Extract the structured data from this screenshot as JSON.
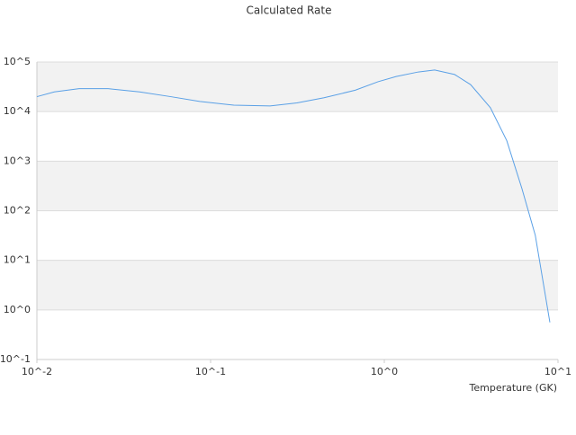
{
  "chart_data": {
    "type": "line",
    "title": "Calculated Rate",
    "x_label": "Temperature (GK)",
    "x_log": true,
    "y_log": true,
    "grid": true,
    "xlim": [
      0.01,
      10
    ],
    "xticks": [
      {
        "value": 0.01,
        "label": "10^-2"
      },
      {
        "value": 0.1,
        "label": "10^-1"
      },
      {
        "value": 1,
        "label": "10^0"
      },
      {
        "value": 10,
        "label": "10^1"
      }
    ],
    "ylim": [
      0.1,
      100000
    ],
    "yticks": [
      {
        "value": 0.1,
        "label": "10^-1"
      },
      {
        "value": 1,
        "label": "10^0"
      },
      {
        "value": 10,
        "label": "10^1"
      },
      {
        "value": 100,
        "label": "10^2"
      },
      {
        "value": 1000,
        "label": "10^3"
      },
      {
        "value": 10000,
        "label": "10^4"
      },
      {
        "value": 100000,
        "label": "10^5"
      }
    ],
    "x": [
      0.01,
      0.0126,
      0.0175,
      0.0257,
      0.039,
      0.059,
      0.0866,
      0.136,
      0.22,
      0.314,
      0.45,
      0.68,
      0.92,
      1.17,
      1.57,
      1.95,
      2.54,
      3.14,
      4.08,
      5.07,
      6.2,
      7.4,
      8.98
    ],
    "series": [
      {
        "color": "#5aa0e6",
        "values": [
          20000,
          25000,
          29000,
          29000,
          25000,
          20000,
          16000,
          13500,
          13000,
          15000,
          19000,
          27000,
          40000,
          51000,
          63000,
          69000,
          56000,
          35000,
          12000,
          2600,
          280,
          32,
          0.56
        ]
      }
    ]
  }
}
